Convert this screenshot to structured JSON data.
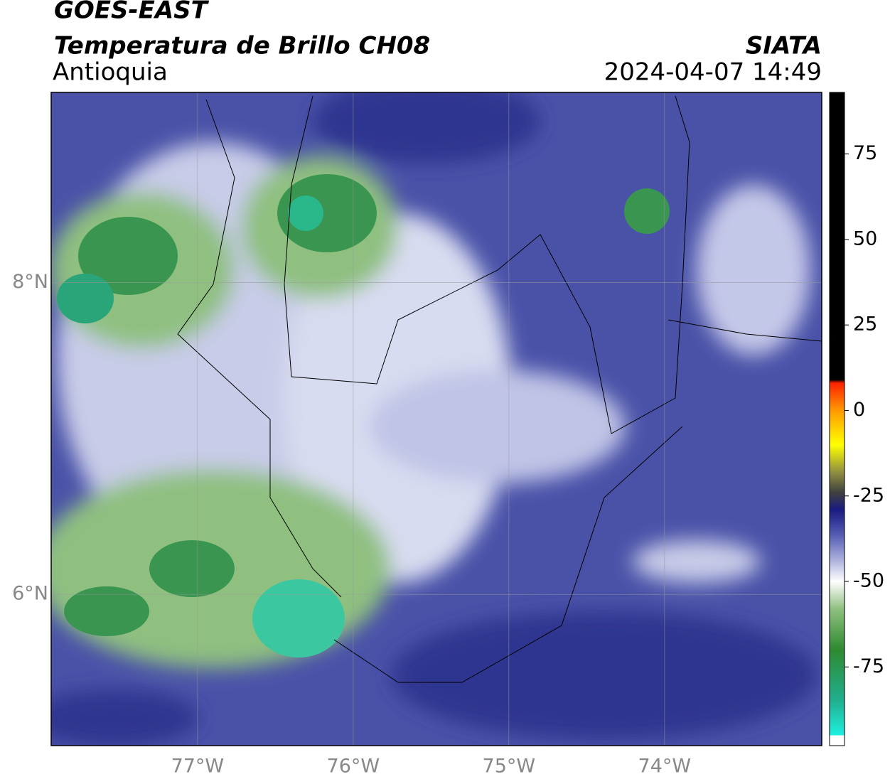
{
  "header": {
    "title": "GOES-EAST",
    "subtitle": "Temperatura de Brillo CH08",
    "region": "Antioquia",
    "source": "SIATA",
    "datetime": "2024-04-07 14:49"
  },
  "map": {
    "xlim": [
      -77.94,
      -72.99
    ],
    "ylim": [
      5.03,
      9.22
    ],
    "xticks": [
      {
        "value": -77,
        "label": "77°W"
      },
      {
        "value": -76,
        "label": "76°W"
      },
      {
        "value": -75,
        "label": "75°W"
      },
      {
        "value": -74,
        "label": "74°W"
      }
    ],
    "yticks": [
      {
        "value": 6,
        "label": "6°N"
      },
      {
        "value": 8,
        "label": "8°N"
      }
    ],
    "grid": true
  },
  "colorbar": {
    "lim": [
      -98,
      93
    ],
    "ticks": [
      -75,
      -50,
      -25,
      0,
      25,
      50,
      75
    ],
    "stops": [
      [
        -98,
        "#ffffff"
      ],
      [
        -95,
        "#ffffff"
      ],
      [
        -95,
        "#1ef0e0"
      ],
      [
        -85,
        "#20b090"
      ],
      [
        -70,
        "#2e8a30"
      ],
      [
        -58,
        "#8fc080"
      ],
      [
        -50,
        "#ffffff"
      ],
      [
        -44,
        "#b0b4de"
      ],
      [
        -36,
        "#5058b0"
      ],
      [
        -29,
        "#1a1a80"
      ],
      [
        -24,
        "#404040"
      ],
      [
        -18,
        "#909040"
      ],
      [
        -10,
        "#ffff00"
      ],
      [
        0,
        "#ff9900"
      ],
      [
        8,
        "#ff2200"
      ],
      [
        9,
        "#000000"
      ],
      [
        93,
        "#000000"
      ]
    ]
  }
}
